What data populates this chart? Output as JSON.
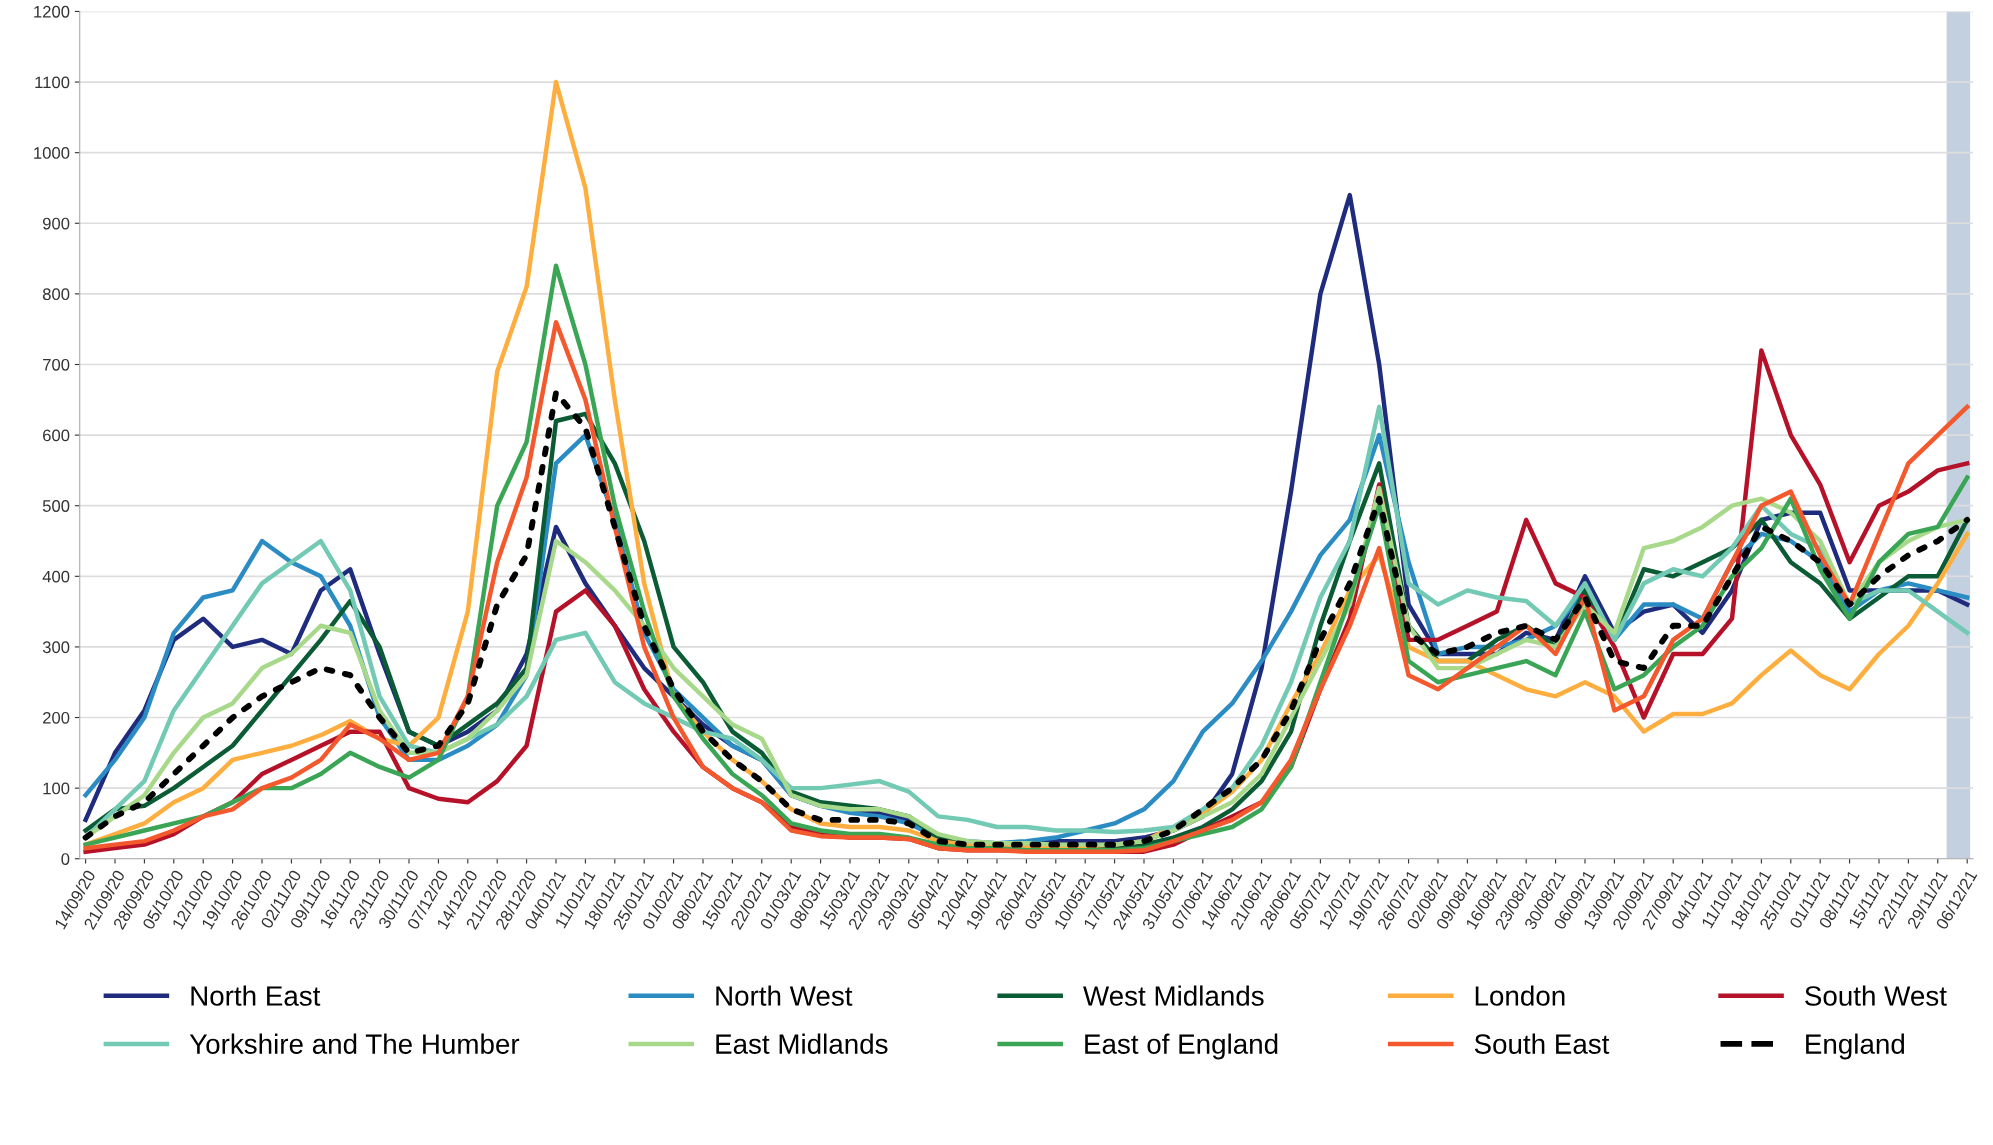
{
  "chart_data": {
    "type": "line",
    "categories": [
      "14/09/20",
      "21/09/20",
      "28/09/20",
      "05/10/20",
      "12/10/20",
      "19/10/20",
      "26/10/20",
      "02/11/20",
      "09/11/20",
      "16/11/20",
      "23/11/20",
      "30/11/20",
      "07/12/20",
      "14/12/20",
      "21/12/20",
      "28/12/20",
      "04/01/21",
      "11/01/21",
      "18/01/21",
      "25/01/21",
      "01/02/21",
      "08/02/21",
      "15/02/21",
      "22/02/21",
      "01/03/21",
      "08/03/21",
      "15/03/21",
      "22/03/21",
      "29/03/21",
      "05/04/21",
      "12/04/21",
      "19/04/21",
      "26/04/21",
      "03/05/21",
      "10/05/21",
      "17/05/21",
      "24/05/21",
      "31/05/21",
      "07/06/21",
      "14/06/21",
      "21/06/21",
      "28/06/21",
      "05/07/21",
      "12/07/21",
      "19/07/21",
      "26/07/21",
      "02/08/21",
      "09/08/21",
      "16/08/21",
      "23/08/21",
      "30/08/21",
      "06/09/21",
      "13/09/21",
      "20/09/21",
      "27/09/21",
      "04/10/21",
      "11/10/21",
      "18/10/21",
      "25/10/21",
      "01/11/21",
      "08/11/21",
      "15/11/21",
      "22/11/21",
      "29/11/21",
      "06/12/21"
    ],
    "series": [
      {
        "name": "North East",
        "color": "#1f2c7e",
        "values": [
          55,
          150,
          210,
          310,
          340,
          300,
          310,
          290,
          380,
          410,
          290,
          180,
          160,
          180,
          210,
          290,
          470,
          390,
          330,
          270,
          230,
          190,
          160,
          140,
          90,
          75,
          70,
          65,
          55,
          30,
          22,
          20,
          20,
          25,
          25,
          25,
          30,
          40,
          60,
          120,
          270,
          520,
          800,
          940,
          700,
          360,
          290,
          290,
          290,
          320,
          310,
          400,
          320,
          350,
          360,
          320,
          380,
          480,
          490,
          490,
          380,
          380,
          380,
          380,
          360
        ]
      },
      {
        "name": "North West",
        "color": "#2b8cc4",
        "values": [
          90,
          140,
          200,
          320,
          370,
          380,
          450,
          420,
          400,
          330,
          200,
          140,
          140,
          160,
          190,
          260,
          560,
          600,
          480,
          320,
          240,
          200,
          160,
          140,
          90,
          75,
          65,
          60,
          50,
          30,
          25,
          22,
          25,
          30,
          40,
          50,
          70,
          110,
          180,
          220,
          280,
          350,
          430,
          480,
          600,
          420,
          290,
          300,
          300,
          310,
          330,
          380,
          310,
          360,
          360,
          340,
          420,
          460,
          450,
          420,
          350,
          380,
          390,
          380,
          370
        ]
      },
      {
        "name": "West Midlands",
        "color": "#0b5c35",
        "values": [
          40,
          70,
          75,
          100,
          130,
          160,
          210,
          260,
          310,
          365,
          300,
          180,
          160,
          190,
          220,
          270,
          620,
          630,
          560,
          450,
          300,
          250,
          180,
          150,
          95,
          80,
          75,
          70,
          60,
          30,
          22,
          20,
          18,
          15,
          15,
          15,
          20,
          30,
          45,
          70,
          110,
          180,
          330,
          450,
          560,
          330,
          280,
          280,
          310,
          330,
          300,
          380,
          310,
          410,
          400,
          420,
          440,
          480,
          420,
          390,
          340,
          370,
          400,
          400,
          480
        ]
      },
      {
        "name": "London",
        "color": "#fdae3e",
        "values": [
          20,
          35,
          50,
          80,
          100,
          140,
          150,
          160,
          175,
          195,
          170,
          160,
          200,
          350,
          690,
          810,
          1100,
          950,
          650,
          390,
          230,
          180,
          140,
          110,
          70,
          50,
          45,
          45,
          40,
          25,
          20,
          18,
          18,
          18,
          18,
          20,
          25,
          45,
          65,
          95,
          140,
          220,
          290,
          380,
          430,
          300,
          280,
          280,
          260,
          240,
          230,
          250,
          230,
          180,
          205,
          205,
          220,
          260,
          295,
          260,
          240,
          290,
          330,
          390,
          460
        ]
      },
      {
        "name": "South West",
        "color": "#b5122a",
        "values": [
          10,
          15,
          20,
          35,
          60,
          80,
          120,
          140,
          160,
          180,
          180,
          100,
          85,
          80,
          110,
          160,
          350,
          380,
          330,
          240,
          180,
          130,
          100,
          80,
          45,
          35,
          30,
          30,
          28,
          15,
          12,
          12,
          12,
          10,
          10,
          10,
          10,
          20,
          40,
          60,
          80,
          130,
          240,
          340,
          530,
          310,
          310,
          330,
          350,
          480,
          390,
          370,
          300,
          200,
          290,
          290,
          340,
          720,
          600,
          530,
          420,
          500,
          520,
          550,
          560
        ]
      },
      {
        "name": "Yorkshire and The Humber",
        "color": "#72c9b4",
        "values": [
          30,
          70,
          110,
          210,
          270,
          330,
          390,
          420,
          450,
          380,
          230,
          160,
          150,
          170,
          190,
          230,
          310,
          320,
          250,
          220,
          200,
          180,
          170,
          140,
          100,
          100,
          105,
          110,
          95,
          60,
          55,
          45,
          45,
          40,
          40,
          38,
          40,
          45,
          70,
          100,
          160,
          250,
          370,
          450,
          640,
          390,
          360,
          380,
          370,
          365,
          330,
          390,
          310,
          390,
          410,
          400,
          440,
          500,
          460,
          440,
          360,
          380,
          380,
          350,
          320
        ]
      },
      {
        "name": "East Midlands",
        "color": "#a8d98a",
        "values": [
          30,
          60,
          90,
          150,
          200,
          220,
          270,
          290,
          330,
          320,
          210,
          150,
          150,
          170,
          210,
          260,
          450,
          420,
          380,
          330,
          270,
          230,
          190,
          170,
          90,
          75,
          70,
          70,
          60,
          35,
          25,
          22,
          22,
          20,
          20,
          20,
          25,
          40,
          60,
          80,
          120,
          200,
          280,
          360,
          525,
          330,
          270,
          270,
          290,
          310,
          300,
          360,
          320,
          440,
          450,
          470,
          500,
          510,
          490,
          450,
          360,
          420,
          450,
          470,
          480
        ]
      },
      {
        "name": "East of England",
        "color": "#3aa655",
        "values": [
          20,
          30,
          40,
          50,
          60,
          80,
          100,
          100,
          120,
          150,
          130,
          115,
          140,
          230,
          500,
          590,
          840,
          700,
          500,
          350,
          230,
          170,
          120,
          90,
          50,
          40,
          35,
          35,
          30,
          20,
          15,
          15,
          12,
          12,
          12,
          12,
          15,
          25,
          35,
          45,
          70,
          130,
          250,
          370,
          500,
          280,
          250,
          260,
          270,
          280,
          260,
          350,
          240,
          260,
          300,
          330,
          400,
          440,
          510,
          410,
          340,
          420,
          460,
          470,
          540
        ]
      },
      {
        "name": "South East",
        "color": "#f4582d",
        "values": [
          15,
          20,
          25,
          40,
          60,
          70,
          100,
          115,
          140,
          190,
          170,
          140,
          150,
          230,
          420,
          540,
          760,
          650,
          470,
          300,
          200,
          130,
          100,
          80,
          40,
          32,
          30,
          30,
          28,
          15,
          12,
          12,
          10,
          10,
          10,
          10,
          12,
          25,
          40,
          55,
          80,
          140,
          240,
          330,
          440,
          260,
          240,
          270,
          300,
          330,
          290,
          370,
          210,
          230,
          310,
          340,
          420,
          500,
          520,
          430,
          360,
          460,
          560,
          600,
          640
        ]
      },
      {
        "name": "England",
        "color": "#000000",
        "line_style": "dotted",
        "values": [
          30,
          60,
          80,
          120,
          160,
          200,
          230,
          250,
          270,
          260,
          200,
          150,
          160,
          220,
          360,
          430,
          660,
          610,
          470,
          330,
          240,
          180,
          140,
          110,
          70,
          55,
          55,
          55,
          50,
          25,
          20,
          20,
          20,
          20,
          20,
          20,
          25,
          40,
          70,
          100,
          140,
          210,
          310,
          390,
          510,
          320,
          290,
          300,
          320,
          330,
          310,
          370,
          280,
          270,
          330,
          330,
          400,
          470,
          450,
          420,
          360,
          400,
          430,
          450,
          480
        ]
      }
    ],
    "ylim": [
      0,
      1200
    ],
    "yticks": [
      0,
      100,
      200,
      300,
      400,
      500,
      600,
      700,
      800,
      900,
      1000,
      1100,
      1200
    ],
    "grid": "y",
    "legend": "bottom",
    "line_style": "solid",
    "bands": [
      {
        "axis": "x",
        "from": "29/11/21",
        "to": "06/12/21",
        "color": "#bccbdb"
      }
    ]
  }
}
